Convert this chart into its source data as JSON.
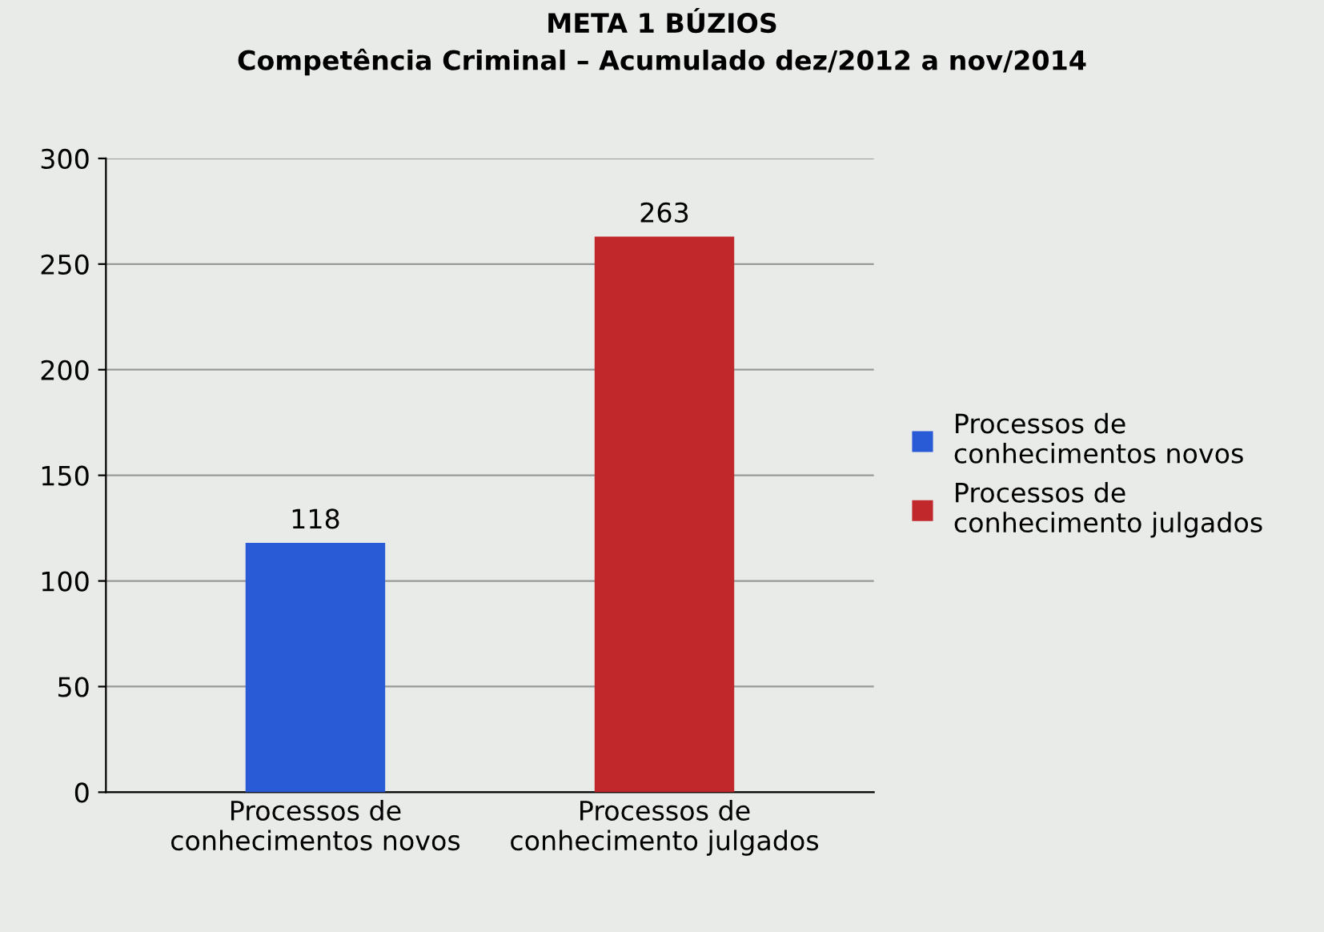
{
  "chart_data": {
    "type": "bar",
    "title": "META 1 BÚZIOS",
    "subtitle": "Competência Criminal – Acumulado dez/2012 a nov/2014",
    "categories": [
      "Processos de\nconhecimentos novos",
      "Processos de\nconhecimento julgados"
    ],
    "series": [
      {
        "name": "Processos de\nconhecimentos novos",
        "color": "#2a5bd6",
        "values": [
          118,
          null
        ]
      },
      {
        "name": "Processos de\nconhecimento julgados",
        "color": "#c0282c",
        "values": [
          null,
          263
        ]
      }
    ],
    "ylim": [
      0,
      300
    ],
    "yticks": [
      0,
      50,
      100,
      150,
      200,
      250,
      300
    ],
    "grid": "y",
    "legend": "right",
    "data_labels": true
  }
}
